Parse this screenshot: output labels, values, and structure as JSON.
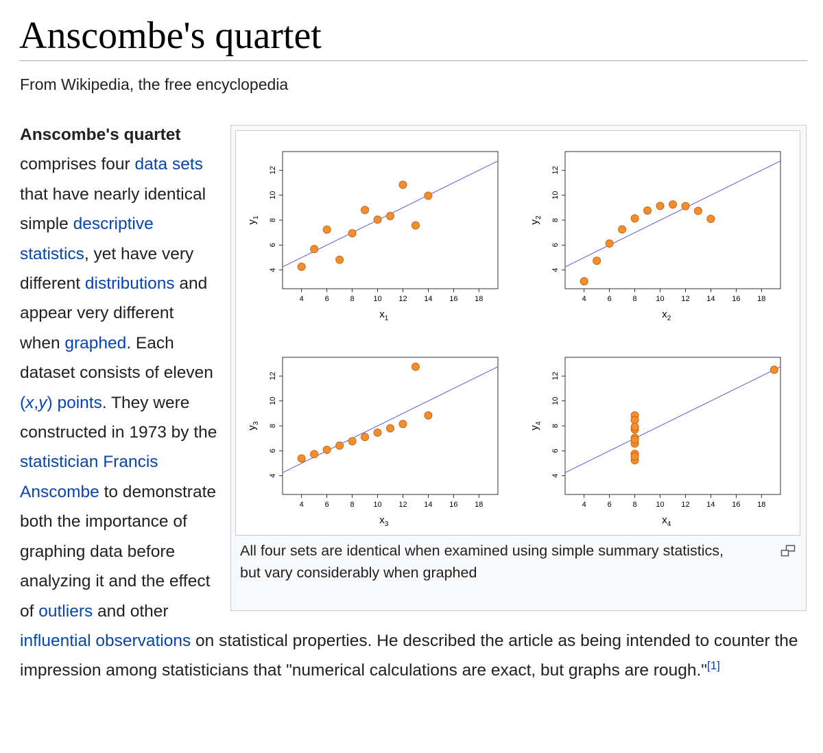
{
  "page": {
    "title": "Anscombe's quartet",
    "tagline": "From Wikipedia, the free encyclopedia"
  },
  "article": {
    "bold": "Anscombe's quartet",
    "t1": " comprises four ",
    "link_data_sets": "data sets",
    "t2": " that have nearly identical simple ",
    "link_descriptive_statistics": "descriptive statistics",
    "t3": ", yet have very different ",
    "link_distributions": "distributions",
    "t4": " and appear very different when ",
    "link_graphed": "graphed",
    "t5": ". Each dataset consists of eleven ",
    "link_xy_open": "(",
    "link_xy_x": "x",
    "link_xy_comma": ",",
    "link_xy_y": "y",
    "link_xy_close": ") points",
    "t6": ". They were constructed in 1973 by the ",
    "link_statistician": "statistician",
    "t7": " ",
    "link_francis_anscombe": "Francis Anscombe",
    "t8": " to demonstrate both the importance of graphing data before analyzing it and the effect of ",
    "link_outliers": "outliers",
    "t9": " and other ",
    "link_influential_observations": "influential observations",
    "t10": " on statistical properties. He described the article as being intended to counter the impression among statisticians that \"numerical calculations are exact, but graphs are rough.\"",
    "ref": "[1]"
  },
  "figure": {
    "caption": "All four sets are identical when examined using simple summary statistics, but vary considerably when graphed",
    "enlarge_icon": "enlarge-icon",
    "colors": {
      "point_fill": "#f28e2b",
      "point_stroke": "#c9671a",
      "line": "#5a5ae0",
      "axis": "#000000"
    }
  },
  "chart_data": [
    {
      "type": "scatter",
      "xlabel": "x",
      "xlabel_sub": "1",
      "ylabel": "y",
      "ylabel_sub": "1",
      "xticks": [
        4,
        6,
        8,
        10,
        12,
        14,
        16,
        18
      ],
      "yticks": [
        4,
        6,
        8,
        10,
        12
      ],
      "xlim": [
        2.5,
        19.5
      ],
      "ylim": [
        2.5,
        13.5
      ],
      "grid": false,
      "x": [
        10,
        8,
        13,
        9,
        11,
        14,
        6,
        4,
        12,
        7,
        5
      ],
      "y": [
        8.04,
        6.95,
        7.58,
        8.81,
        8.33,
        9.96,
        7.24,
        4.26,
        10.84,
        4.82,
        5.68
      ],
      "fit": {
        "intercept": 3.0,
        "slope": 0.5
      }
    },
    {
      "type": "scatter",
      "xlabel": "x",
      "xlabel_sub": "2",
      "ylabel": "y",
      "ylabel_sub": "2",
      "xticks": [
        4,
        6,
        8,
        10,
        12,
        14,
        16,
        18
      ],
      "yticks": [
        4,
        6,
        8,
        10,
        12
      ],
      "xlim": [
        2.5,
        19.5
      ],
      "ylim": [
        2.5,
        13.5
      ],
      "grid": false,
      "x": [
        10,
        8,
        13,
        9,
        11,
        14,
        6,
        4,
        12,
        7,
        5
      ],
      "y": [
        9.14,
        8.14,
        8.74,
        8.77,
        9.26,
        8.1,
        6.13,
        3.1,
        9.13,
        7.26,
        4.74
      ],
      "fit": {
        "intercept": 3.0,
        "slope": 0.5
      }
    },
    {
      "type": "scatter",
      "xlabel": "x",
      "xlabel_sub": "3",
      "ylabel": "y",
      "ylabel_sub": "3",
      "xticks": [
        4,
        6,
        8,
        10,
        12,
        14,
        16,
        18
      ],
      "yticks": [
        4,
        6,
        8,
        10,
        12
      ],
      "xlim": [
        2.5,
        19.5
      ],
      "ylim": [
        2.5,
        13.5
      ],
      "grid": false,
      "x": [
        10,
        8,
        13,
        9,
        11,
        14,
        6,
        4,
        12,
        7,
        5
      ],
      "y": [
        7.46,
        6.77,
        12.74,
        7.11,
        7.81,
        8.84,
        6.08,
        5.39,
        8.15,
        6.42,
        5.73
      ],
      "fit": {
        "intercept": 3.0,
        "slope": 0.5
      }
    },
    {
      "type": "scatter",
      "xlabel": "x",
      "xlabel_sub": "4",
      "ylabel": "y",
      "ylabel_sub": "4",
      "xticks": [
        4,
        6,
        8,
        10,
        12,
        14,
        16,
        18
      ],
      "yticks": [
        4,
        6,
        8,
        10,
        12
      ],
      "xlim": [
        2.5,
        19.5
      ],
      "ylim": [
        2.5,
        13.5
      ],
      "grid": false,
      "x": [
        8,
        8,
        8,
        8,
        8,
        8,
        8,
        19,
        8,
        8,
        8
      ],
      "y": [
        6.58,
        5.76,
        7.71,
        8.84,
        8.47,
        7.04,
        5.25,
        12.5,
        5.56,
        7.91,
        6.89
      ],
      "fit": {
        "intercept": 3.0,
        "slope": 0.5
      }
    }
  ]
}
